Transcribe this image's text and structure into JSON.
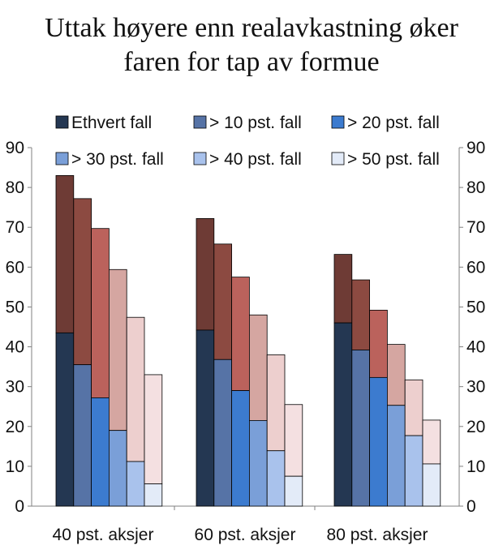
{
  "title_line1": "Uttak høyere enn realavkastning øker",
  "title_line2": "faren for tap av formue",
  "chart_data": {
    "type": "bar",
    "stacked_overlay": true,
    "title": "Uttak høyere enn realavkastning øker faren for tap av formue",
    "categories": [
      "40 pst. aksjer",
      "60 pst. aksjer",
      "80 pst. aksjer"
    ],
    "ylim": [
      0,
      90
    ],
    "yticks": [
      "0",
      "10",
      "20",
      "30",
      "40",
      "50",
      "60",
      "70",
      "80",
      "90"
    ],
    "legend": [
      "Ethvert fall",
      "> 10 pst. fall",
      "> 20 pst. fall",
      "> 30 pst. fall",
      "> 40 pst. fall",
      "> 50 pst. fall"
    ],
    "legend_position": "top",
    "series": [
      {
        "name": "Ethvert fall",
        "bottom": [
          43.5,
          44.2,
          46.0
        ],
        "total": [
          83.0,
          72.2,
          63.2
        ]
      },
      {
        "name": "> 10 pst. fall",
        "bottom": [
          35.5,
          36.8,
          39.2
        ],
        "total": [
          77.2,
          65.8,
          56.8
        ]
      },
      {
        "name": "> 20 pst. fall",
        "bottom": [
          27.2,
          29.0,
          32.3
        ],
        "total": [
          69.7,
          57.5,
          49.2
        ]
      },
      {
        "name": "> 30 pst. fall",
        "bottom": [
          19.0,
          21.5,
          25.3
        ],
        "total": [
          59.4,
          48.0,
          40.6
        ]
      },
      {
        "name": "> 40 pst. fall",
        "bottom": [
          11.2,
          13.9,
          17.7
        ],
        "total": [
          47.4,
          38.0,
          31.7
        ]
      },
      {
        "name": "> 50 pst. fall",
        "bottom": [
          5.6,
          7.5,
          10.6
        ],
        "total": [
          33.0,
          25.5,
          21.6
        ]
      }
    ],
    "colors": {
      "lower": [
        "#243752",
        "#5673a6",
        "#3c7bcf",
        "#7a9fd8",
        "#a9c2ec",
        "#e3ebf8"
      ],
      "upper": [
        "#6e3b35",
        "#8c4a41",
        "#bb625c",
        "#d5a6a1",
        "#edcfce",
        "#f4e0e1"
      ]
    },
    "grid": false,
    "axes": "left and right y-axis with identical scales"
  }
}
